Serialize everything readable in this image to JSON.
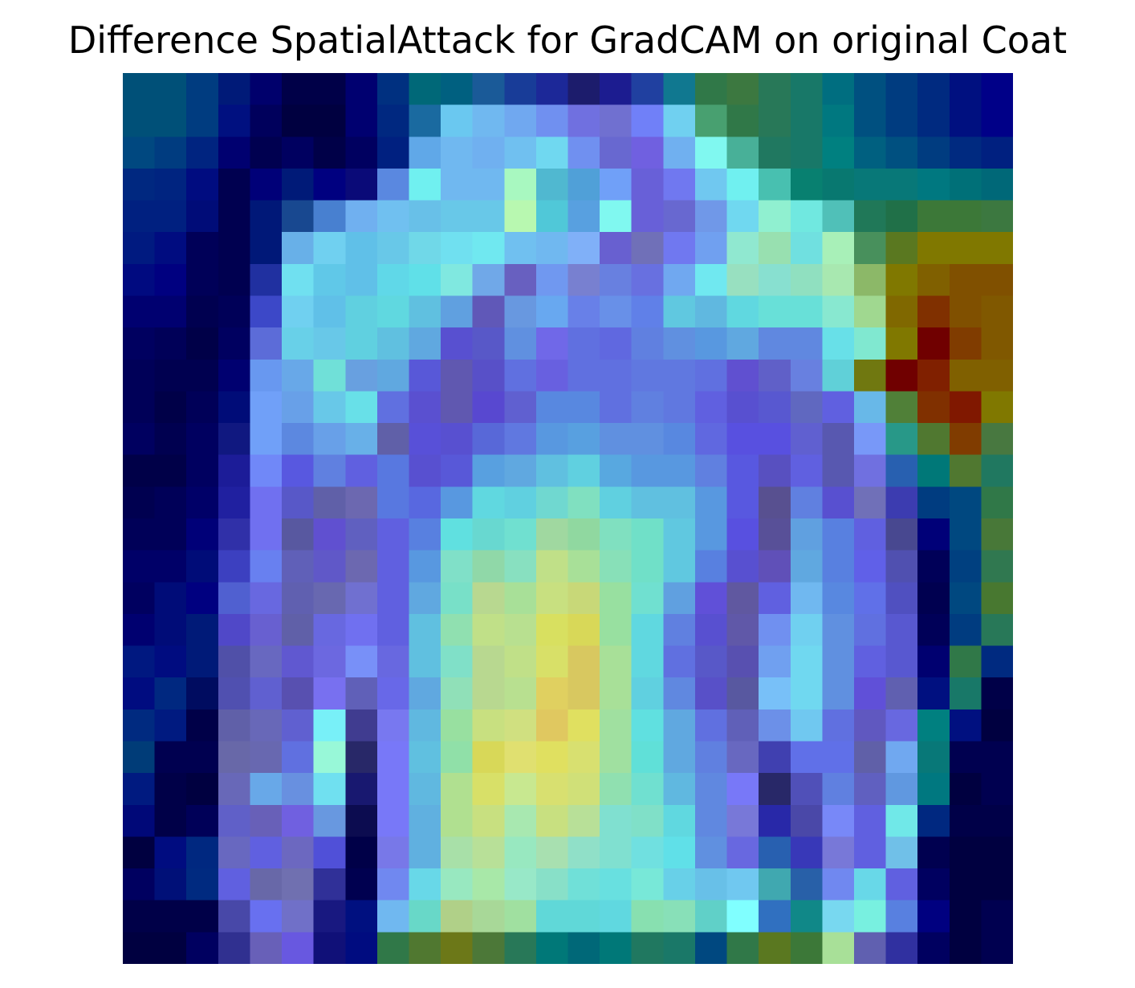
{
  "chart_data": {
    "type": "heatmap",
    "title": "Difference SpatialAttack for GradCAM on original Coat",
    "rows": 28,
    "cols": 28,
    "axes_visible": false,
    "cells": [
      "#005078,#005078,#003c80,#001a78,#00006c,#000048,#000048,#000070,#003080,#006878,#006080,#1a5a98,#183c98,#1c2898,#1c1c6c,#1c1c90,#2040a0,#107890,#307848,#3c7840,#287858,#187868,#006e80,#005080,#003c80,#002a80,#001080,#000088",
      "#005078,#005078,#003c80,#001080,#00005c,#000040,#000040,#000070,#002880,#1a6aa0,#6ac8f0,#70b8f0,#70a8f0,#7090f0,#7070e0,#7070d0,#7080f8,#70d0f0,#48a070,#307848,#287858,#187868,#007880,#005080,#003c80,#002a80,#001080,#000088",
      "#004880,#003c80,#002480,#000070,#000050,#000060,#000048,#000060,#002080,#60a8e8,#70b8f0,#70b0f0,#70c0f0,#70d8f0,#7090f0,#6868d0,#7060e0,#70b0f0,#80f8f0,#48b098,#207860,#187868,#008080,#006080,#005080,#003c80,#002a80,#002080",
      "#002880,#002480,#000c80,#000050,#000078,#001a78,#000080,#0a0a78,#5a88e0,#70f0f0,#70b8f0,#70b8f0,#a8f8c0,#50b8d0,#50a0d8,#70a0f8,#6860d8,#7078f0,#70c8f0,#70f0f0,#48c0b0,#088070,#087870,#087878,#087878,#007880,#007078,#006878",
      "#002080,#002080,#000c78,#000050,#001878,#184890,#4880d0,#70b0f0,#70c0f0,#68c0e8,#68c8e8,#68c8e8,#b8f8b0,#50c8d8,#58a0e0,#80f8f0,#6860d8,#6868d0,#7098e8,#70d8f0,#90f0d0,#70e8e0,#50c0b8,#207858,#207048,#3c7838,#3c7838,#3c7840",
      "#001a80,#000c80,#000058,#000050,#001878,#68b0e8,#70d0f0,#60c0e8,#68c8e8,#70d8e8,#70e0f0,#70e8f0,#70c0f0,#70b8f0,#80b0f8,#6860d0,#7070b8,#7078f0,#70a0f0,#90e8d0,#98e0b0,#70e0e0,#a8f0b8,#48905c,#5a7820,#807800,#807800,#807800",
      "#000a80,#000080,#000058,#000050,#2030a0,#70e0f0,#60c8e8,#60c0e8,#60d8e8,#60e0e8,#80e8e0,#70a8e8,#6860c0,#7098f0,#7880d0,#6880e0,#6870e0,#70a8f0,#70e8f0,#98e0c0,#88e0d0,#90e0c0,#a8e8b0,#8cb868,#807800,#806000,#805000,#805000",
      "#000070,#000070,#000050,#000058,#3c48c8,#70d0f0,#60c0e8,#60d0e0,#60d8e0,#60c0e0,#60a0e0,#6058b8,#6898e0,#68a8f0,#6880e8,#6890e8,#6080e8,#60c8e0,#60b8e0,#60d8e0,#68e0d8,#68e0d8,#88e8d0,#a0d890,#806800,#803000,#805000,#805800",
      "#000060,#000058,#000048,#000060,#5c6cd8,#68d0e8,#68c8e8,#60d0e0,#60c0e0,#60a8e0,#5850d0,#5858c8,#6090e0,#7068e8,#6070e0,#6068e0,#6080e0,#6090e0,#5898e0,#60a8e0,#6088e0,#6088e0,#68e0e8,#80e8d0,#807800,#700000,#803c00,#805800",
      "#000058,#000050,#000050,#000070,#6898f0,#68a8e8,#70e0d8,#68a0e0,#60a8e0,#5858d8,#6058b0,#5850c8,#6070e0,#6860e0,#6070e0,#6070e0,#6078e0,#6078e0,#6070e0,#6050d0,#6060c8,#6880e0,#60d0d8,#707810,#700000,#802000,#806000,#806000",
      "#000058,#000048,#000058,#000c78,#70a0f8,#68a0e8,#68c8e8,#68e0e8,#6070e0,#5a50d0,#6058b0,#5848d0,#6060d0,#5888e0,#5888e0,#6070e0,#6080e0,#6078e0,#6060e0,#5850d0,#5858d0,#6068c0,#6060e0,#68b8e8,#508038,#803000,#801800,#807800",
      "#000060,#000050,#000060,#101880,#70a0f8,#5c88e0,#68a0e8,#68b0e8,#6060a8,#5850d8,#5850d0,#5868d8,#6078e0,#5898e0,#58a0e0,#6090e0,#6090e0,#5888e0,#6068e0,#5850e0,#5850e0,#6060d0,#5858b0,#7898f8,#289888,#507830,#803c00,#487840",
      "#000048,#000048,#000060,#1c1c98,#7088f8,#5858e0,#6080e0,#6060e0,#5878e0,#5850d0,#5858d8,#58a0e0,#60a8e0,#60c0e0,#60d0e0,#58a8e0,#5898e0,#5898e0,#6080e0,#5858e0,#5850c0,#6060e0,#5858b0,#7070e0,#2860b0,#007878,#507830,#207860",
      "#000050,#000058,#000068,#2020a0,#7070f0,#5858c8,#6060a8,#6c68b0,#5878e0,#5868e0,#5898e0,#60d8e0,#60d0e0,#70d8d0,#80e0c0,#60d0e0,#60c0e0,#60c0e0,#5898e0,#5858e0,#585090,#6080e0,#5850d0,#7070b8,#3c3cb0,#003c80,#004880,#307848",
      "#000058,#000058,#000078,#3030a8,#7070f0,#5858a0,#6050d0,#6060c0,#6060e0,#5880e0,#60e0e0,#68d8d0,#70e0d0,#a0d8a0,#90d8a0,#80e0c0,#70e0c8,#60c8e0,#5898e0,#5850e0,#585098,#60a0e0,#5880e0,#6060e0,#484890,#000078,#004880,#487838",
      "#000068,#000068,#000c78,#3c40c0,#6880f0,#6060b8,#6058c8,#6c68b0,#6060e0,#5898e0,#80e0c8,#90d8a8,#88e0c0,#c0e088,#a8e098,#88e0b8,#70e0c8,#60c8e0,#5880e0,#5850d0,#6050b8,#60a8e0,#5880e0,#6060e8,#5050b0,#000058,#004080,#307850",
      "#000060,#000c78,#000080,#5060d0,#6868e0,#6060b0,#6868b0,#7070d0,#6060e0,#60a8e0,#78e0c8,#b8d890,#a8e098,#c8e080,#c8d878,#98e0a0,#70e0d0,#60a0e0,#6050d8,#6058a0,#6060e0,#70b8f0,#5888e0,#6070e8,#5050c0,#000050,#004880,#487830",
      "#000070,#000c78,#001a78,#5048c8,#6860d0,#6060a8,#6868e0,#7070f0,#6060e0,#60c0e0,#90e0b0,#c0e088,#b8e090,#d8e060,#d8d858,#98e0a0,#60d8e0,#6080e0,#5850d0,#6058a8,#7090f0,#70d0f0,#6090e0,#6070e0,#5858d0,#000058,#003c80,#287858",
      "#001880,#000c80,#001a78,#5050a8,#6868c0,#6058d0,#6c68e0,#7890f8,#6868e0,#60c0e0,#80e0c8,#b8d890,#c0e088,#d8e068,#d8c860,#a8e098,#60d8e0,#6070e0,#5858c8,#5850b0,#70a0f0,#70d8f0,#6090e0,#6060e0,#5858d0,#000070,#307848,#002a80",
      "#000c80,#002880,#000c60,#5050b0,#6060d0,#5850b0,#7870f0,#6060b8,#6868e8,#60a8e0,#90e0b8,#b8d890,#b8e090,#e0d060,#d8c860,#a8e098,#60d0e0,#6088e0,#5850c8,#5858a0,#78c0f8,#70d8f0,#6090e0,#6050d8,#6060b0,#001080,#187868,#000048",
      "#002a80,#001a80,#000048,#6060a8,#6868b8,#6060d0,#78f0f8,#403c90,#7878f0,#60b8e0,#98e0a0,#c8e080,#d0e080,#e0c860,#e0e060,#a0e0a0,#60e0e0,#60a8e0,#6070e0,#6060b8,#6c90e8,#70c8f0,#6070e0,#6058c0,#6868e0,#008080,#001080,#000040",
      "#003c78,#000050,#000050,#6868a8,#6868b0,#6070e0,#98f8d8,#282868,#7878f8,#60c0e0,#90e0a8,#d8d858,#e0e070,#e0e060,#d8e070,#a0e0a0,#60e0d8,#60a8e0,#6080e0,#6868c0,#4040b0,#6070e8,#6070e8,#6060a8,#70a8f0,#087878,#000050,#000050",
      "#001a80,#000048,#000040,#6868b8,#68a8e8,#6890e0,#70e0f0,#181870,#7878f8,#60b8e0,#b0e090,#d8e068,#c8e890,#d8e070,#d0e078,#90e0b0,#70e0d0,#60b8e0,#6088e0,#7878f8,#282868,#5050b8,#6080e0,#6060c0,#6098e0,#007880,#000040,#000050",
      "#000878,#000048,#000058,#6060c8,#6860b8,#7060e0,#6898e0,#0c0c50,#7878f8,#60b0e0,#b0e090,#c8e080,#a8e8b0,#c8e080,#b8e098,#80e0d0,#80e0c8,#60d8e0,#6088e0,#7878d8,#2828a8,#4a48a8,#7888f8,#6060e0,#70e8e8,#002880,#000048,#000048",
      "#000040,#000c80,#002880,#6868c0,#6060e0,#6c68c0,#5050d8,#000048,#7878e8,#60b0e0,#a8e0a8,#b8e098,#98e8c0,#a8e0b0,#90e0c8,#80e0d0,#70e0e0,#60e0e8,#6090e0,#6868e0,#2860b0,#3838b8,#7878d8,#6060e0,#70c0e8,#000050,#000040,#000040",
      "#000060,#001078,#002a80,#6060e0,#6868a8,#7070b0,#303098,#000050,#7088f0,#68d8e8,#98e8c0,#a8e8a8,#98e8c8,#88e0c8,#70e0d8,#68e0e0,#78e8d8,#68d0e8,#68c0e8,#70c8f0,#40a8b0,#2860a8,#7088f0,#68d8e8,#6060e0,#000060,#000040,#000040",
      "#000048,#000048,#000048,#4848a8,#6870f0,#7070c8,#181880,#001080,#70b8f0,#68d8c8,#b0d088,#a8d898,#a0e0a0,#60d8d8,#60d8d8,#60d8e0,#88e0b0,#88e0b8,#60d0c8,#80ffff,#3070c0,#108888,#78d8f0,#78f0e0,#5880e0,#000080,#000040,#000050",
      "#000040,#000040,#000060,#303090,#6860b8,#6858e0,#101078,#000c80,#307848,#507830,#6c7818,#4c7838,#287858,#007878,#006878,#007878,#207860,#1a7868,#004880,#307848,#5a7820,#3c7838,#a8e098,#6060b0,#3030a0,#000060,#000040,#000050"
    ]
  }
}
